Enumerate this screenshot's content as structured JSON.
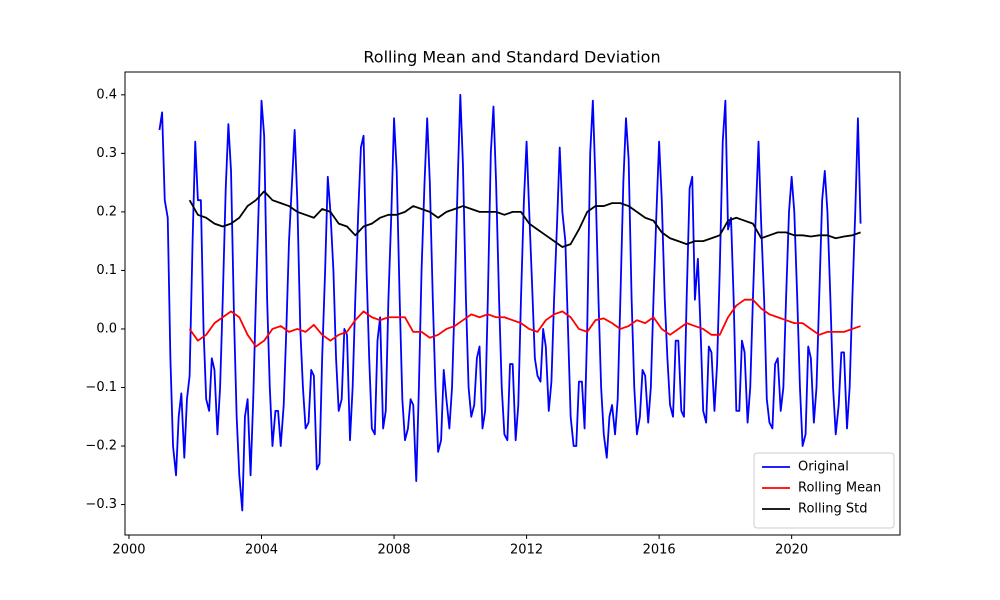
{
  "chart_data": {
    "type": "line",
    "title": "Rolling Mean and Standard Deviation",
    "xlim": [
      1999.88,
      2023.27
    ],
    "xticks": [
      2000,
      2004,
      2008,
      2012,
      2016,
      2020
    ],
    "ylim": [
      -0.352,
      0.439
    ],
    "yticks": [
      {
        "value": -0.3,
        "label": "−0.3"
      },
      {
        "value": -0.2,
        "label": "−0.2"
      },
      {
        "value": -0.1,
        "label": "−0.1"
      },
      {
        "value": 0.0,
        "label": "0.0"
      },
      0.1,
      0.2,
      0.3,
      0.4
    ],
    "grid": false,
    "legend": "lower right",
    "series": [
      {
        "name": "Original",
        "color": "#0000ff",
        "x": [
          2000.92,
          2001.0,
          2001.08,
          2001.17,
          2001.25,
          2001.33,
          2001.42,
          2001.5,
          2001.58,
          2001.67,
          2001.75,
          2001.83,
          2001.92,
          2002.0,
          2002.08,
          2002.17,
          2002.25,
          2002.33,
          2002.42,
          2002.5,
          2002.58,
          2002.67,
          2002.75,
          2002.83,
          2002.92,
          2003.0,
          2003.08,
          2003.17,
          2003.25,
          2003.33,
          2003.42,
          2003.5,
          2003.58,
          2003.67,
          2003.75,
          2003.83,
          2003.92,
          2004.0,
          2004.08,
          2004.17,
          2004.25,
          2004.33,
          2004.42,
          2004.5,
          2004.58,
          2004.67,
          2004.75,
          2004.83,
          2004.92,
          2005.0,
          2005.08,
          2005.17,
          2005.25,
          2005.33,
          2005.42,
          2005.5,
          2005.58,
          2005.67,
          2005.75,
          2005.83,
          2005.92,
          2006.0,
          2006.08,
          2006.17,
          2006.25,
          2006.33,
          2006.42,
          2006.5,
          2006.58,
          2006.67,
          2006.75,
          2006.83,
          2006.92,
          2007.0,
          2007.08,
          2007.17,
          2007.25,
          2007.33,
          2007.42,
          2007.5,
          2007.58,
          2007.67,
          2007.75,
          2007.83,
          2007.92,
          2008.0,
          2008.08,
          2008.17,
          2008.25,
          2008.33,
          2008.42,
          2008.5,
          2008.58,
          2008.67,
          2008.75,
          2008.83,
          2008.92,
          2009.0,
          2009.08,
          2009.17,
          2009.25,
          2009.33,
          2009.42,
          2009.5,
          2009.58,
          2009.67,
          2009.75,
          2009.83,
          2009.92,
          2010.0,
          2010.08,
          2010.17,
          2010.25,
          2010.33,
          2010.42,
          2010.5,
          2010.58,
          2010.67,
          2010.75,
          2010.83,
          2010.92,
          2011.0,
          2011.08,
          2011.17,
          2011.25,
          2011.33,
          2011.42,
          2011.5,
          2011.58,
          2011.67,
          2011.75,
          2011.83,
          2011.92,
          2012.0,
          2012.08,
          2012.17,
          2012.25,
          2012.33,
          2012.42,
          2012.5,
          2012.58,
          2012.67,
          2012.75,
          2012.83,
          2012.92,
          2013.0,
          2013.08,
          2013.17,
          2013.25,
          2013.33,
          2013.42,
          2013.5,
          2013.58,
          2013.67,
          2013.75,
          2013.83,
          2013.92,
          2014.0,
          2014.08,
          2014.17,
          2014.25,
          2014.33,
          2014.42,
          2014.5,
          2014.58,
          2014.67,
          2014.75,
          2014.83,
          2014.92,
          2015.0,
          2015.08,
          2015.17,
          2015.25,
          2015.33,
          2015.42,
          2015.5,
          2015.58,
          2015.67,
          2015.75,
          2015.83,
          2015.92,
          2016.0,
          2016.08,
          2016.17,
          2016.25,
          2016.33,
          2016.42,
          2016.5,
          2016.58,
          2016.67,
          2016.75,
          2016.83,
          2016.92,
          2017.0,
          2017.08,
          2017.17,
          2017.25,
          2017.33,
          2017.42,
          2017.5,
          2017.58,
          2017.67,
          2017.75,
          2017.83,
          2017.92,
          2018.0,
          2018.08,
          2018.17,
          2018.25,
          2018.33,
          2018.42,
          2018.5,
          2018.58,
          2018.67,
          2018.75,
          2018.83,
          2018.92,
          2019.0,
          2019.08,
          2019.17,
          2019.25,
          2019.33,
          2019.42,
          2019.5,
          2019.58,
          2019.67,
          2019.75,
          2019.83,
          2019.92,
          2020.0,
          2020.08,
          2020.17,
          2020.25,
          2020.33,
          2020.42,
          2020.5,
          2020.58,
          2020.67,
          2020.75,
          2020.83,
          2020.92,
          2021.0,
          2021.08,
          2021.17,
          2021.25,
          2021.33,
          2021.42,
          2021.5,
          2021.58,
          2021.67,
          2021.75,
          2021.83,
          2021.92,
          2022.0,
          2022.08
        ],
        "values": [
          0.34,
          0.37,
          0.22,
          0.19,
          -0.05,
          -0.2,
          -0.25,
          -0.15,
          -0.11,
          -0.22,
          -0.12,
          -0.08,
          0.15,
          0.32,
          0.22,
          0.22,
          0.0,
          -0.12,
          -0.14,
          -0.05,
          -0.07,
          -0.18,
          -0.1,
          0.05,
          0.24,
          0.35,
          0.27,
          0.02,
          -0.15,
          -0.25,
          -0.31,
          -0.15,
          -0.12,
          -0.25,
          -0.12,
          0.05,
          0.22,
          0.39,
          0.33,
          0.05,
          -0.1,
          -0.2,
          -0.14,
          -0.14,
          -0.2,
          -0.13,
          0.0,
          0.15,
          0.25,
          0.34,
          0.22,
          0.0,
          -0.1,
          -0.17,
          -0.16,
          -0.07,
          -0.08,
          -0.24,
          -0.23,
          -0.05,
          0.1,
          0.26,
          0.2,
          0.1,
          -0.05,
          -0.14,
          -0.12,
          0.0,
          -0.01,
          -0.19,
          -0.1,
          0.05,
          0.2,
          0.31,
          0.33,
          0.1,
          -0.05,
          -0.17,
          -0.18,
          -0.02,
          0.02,
          -0.17,
          -0.14,
          0.05,
          0.2,
          0.36,
          0.27,
          0.05,
          -0.12,
          -0.19,
          -0.17,
          -0.12,
          -0.13,
          -0.26,
          -0.1,
          0.1,
          0.25,
          0.36,
          0.25,
          0.05,
          -0.1,
          -0.21,
          -0.19,
          -0.07,
          -0.12,
          -0.17,
          -0.1,
          0.05,
          0.25,
          0.4,
          0.28,
          0.05,
          -0.1,
          -0.15,
          -0.13,
          -0.05,
          -0.03,
          -0.17,
          -0.14,
          0.05,
          0.3,
          0.38,
          0.25,
          0.05,
          -0.1,
          -0.18,
          -0.19,
          -0.06,
          -0.06,
          -0.19,
          -0.13,
          0.05,
          0.22,
          0.32,
          0.2,
          0.07,
          -0.05,
          -0.08,
          -0.09,
          0.0,
          -0.03,
          -0.14,
          -0.09,
          0.05,
          0.18,
          0.31,
          0.2,
          0.15,
          0.0,
          -0.15,
          -0.2,
          -0.2,
          -0.09,
          -0.09,
          -0.17,
          0.0,
          0.3,
          0.39,
          0.25,
          0.05,
          -0.1,
          -0.18,
          -0.22,
          -0.15,
          -0.13,
          -0.18,
          -0.12,
          0.05,
          0.25,
          0.36,
          0.29,
          0.05,
          -0.1,
          -0.18,
          -0.15,
          -0.07,
          -0.08,
          -0.16,
          -0.1,
          0.05,
          0.2,
          0.32,
          0.22,
          0.05,
          -0.05,
          -0.13,
          -0.15,
          -0.02,
          -0.02,
          -0.14,
          -0.15,
          0.05,
          0.24,
          0.26,
          0.05,
          0.12,
          0.0,
          -0.14,
          -0.16,
          -0.03,
          -0.04,
          -0.14,
          -0.06,
          0.1,
          0.32,
          0.39,
          0.17,
          0.19,
          0.05,
          -0.14,
          -0.14,
          -0.02,
          -0.04,
          -0.16,
          -0.1,
          0.05,
          0.2,
          0.32,
          0.18,
          0.05,
          -0.12,
          -0.16,
          -0.17,
          -0.06,
          -0.05,
          -0.14,
          -0.1,
          0.05,
          0.2,
          0.26,
          0.2,
          0.05,
          -0.1,
          -0.2,
          -0.18,
          -0.03,
          -0.05,
          -0.16,
          -0.1,
          0.05,
          0.22,
          0.27,
          0.2,
          0.05,
          -0.1,
          -0.18,
          -0.13,
          -0.04,
          -0.04,
          -0.17,
          -0.1,
          0.05,
          0.2,
          0.36,
          0.18
        ]
      },
      {
        "name": "Rolling Mean",
        "color": "#ff0000",
        "x": [
          2001.83,
          2002.08,
          2002.33,
          2002.58,
          2002.83,
          2003.08,
          2003.33,
          2003.58,
          2003.83,
          2004.08,
          2004.33,
          2004.58,
          2004.83,
          2005.08,
          2005.33,
          2005.58,
          2005.83,
          2006.08,
          2006.33,
          2006.58,
          2006.83,
          2007.08,
          2007.33,
          2007.58,
          2007.83,
          2008.08,
          2008.33,
          2008.58,
          2008.83,
          2009.08,
          2009.33,
          2009.58,
          2009.83,
          2010.08,
          2010.33,
          2010.58,
          2010.83,
          2011.08,
          2011.33,
          2011.58,
          2011.83,
          2012.08,
          2012.33,
          2012.58,
          2012.83,
          2013.08,
          2013.33,
          2013.58,
          2013.83,
          2014.08,
          2014.33,
          2014.58,
          2014.83,
          2015.08,
          2015.33,
          2015.58,
          2015.83,
          2016.08,
          2016.33,
          2016.58,
          2016.83,
          2017.08,
          2017.33,
          2017.58,
          2017.83,
          2018.08,
          2018.33,
          2018.58,
          2018.83,
          2019.08,
          2019.33,
          2019.58,
          2019.83,
          2020.08,
          2020.33,
          2020.58,
          2020.83,
          2021.08,
          2021.33,
          2021.58,
          2021.83,
          2022.08
        ],
        "values": [
          0.0,
          -0.02,
          -0.01,
          0.01,
          0.02,
          0.03,
          0.02,
          -0.01,
          -0.03,
          -0.02,
          0.0,
          0.005,
          -0.005,
          0.0,
          -0.005,
          0.007,
          -0.01,
          -0.02,
          -0.01,
          -0.005,
          0.015,
          0.03,
          0.02,
          0.015,
          0.02,
          0.02,
          0.02,
          -0.005,
          -0.005,
          -0.015,
          -0.01,
          0.0,
          0.005,
          0.015,
          0.025,
          0.02,
          0.025,
          0.02,
          0.02,
          0.015,
          0.01,
          0.0,
          -0.005,
          0.015,
          0.025,
          0.03,
          0.02,
          0.0,
          -0.005,
          0.015,
          0.018,
          0.01,
          0.0,
          0.005,
          0.015,
          0.01,
          0.02,
          0.0,
          -0.01,
          0.0,
          0.01,
          0.005,
          0.0,
          -0.01,
          -0.01,
          0.02,
          0.04,
          0.05,
          0.05,
          0.035,
          0.025,
          0.02,
          0.015,
          0.01,
          0.01,
          0.0,
          -0.01,
          -0.005,
          -0.005,
          -0.005,
          0.0,
          0.005
        ]
      },
      {
        "name": "Rolling Std",
        "color": "#000000",
        "x": [
          2001.83,
          2002.08,
          2002.33,
          2002.58,
          2002.83,
          2003.08,
          2003.33,
          2003.58,
          2003.83,
          2004.08,
          2004.33,
          2004.58,
          2004.83,
          2005.08,
          2005.33,
          2005.58,
          2005.83,
          2006.08,
          2006.33,
          2006.58,
          2006.83,
          2007.08,
          2007.33,
          2007.58,
          2007.83,
          2008.08,
          2008.33,
          2008.58,
          2008.83,
          2009.08,
          2009.33,
          2009.58,
          2009.83,
          2010.08,
          2010.33,
          2010.58,
          2010.83,
          2011.08,
          2011.33,
          2011.58,
          2011.83,
          2012.08,
          2012.33,
          2012.58,
          2012.83,
          2013.08,
          2013.33,
          2013.58,
          2013.83,
          2014.08,
          2014.33,
          2014.58,
          2014.83,
          2015.08,
          2015.33,
          2015.58,
          2015.83,
          2016.08,
          2016.33,
          2016.58,
          2016.83,
          2017.08,
          2017.33,
          2017.58,
          2017.83,
          2018.08,
          2018.33,
          2018.58,
          2018.83,
          2019.08,
          2019.33,
          2019.58,
          2019.83,
          2020.08,
          2020.33,
          2020.58,
          2020.83,
          2021.08,
          2021.33,
          2021.58,
          2021.83,
          2022.08
        ],
        "values": [
          0.22,
          0.195,
          0.19,
          0.18,
          0.175,
          0.18,
          0.19,
          0.21,
          0.22,
          0.235,
          0.22,
          0.215,
          0.21,
          0.2,
          0.195,
          0.19,
          0.205,
          0.2,
          0.18,
          0.175,
          0.16,
          0.175,
          0.18,
          0.19,
          0.195,
          0.195,
          0.2,
          0.21,
          0.205,
          0.2,
          0.19,
          0.2,
          0.205,
          0.21,
          0.205,
          0.2,
          0.2,
          0.2,
          0.195,
          0.2,
          0.2,
          0.18,
          0.17,
          0.16,
          0.15,
          0.14,
          0.145,
          0.17,
          0.2,
          0.21,
          0.21,
          0.215,
          0.215,
          0.21,
          0.2,
          0.19,
          0.185,
          0.165,
          0.155,
          0.15,
          0.145,
          0.15,
          0.15,
          0.155,
          0.16,
          0.185,
          0.19,
          0.185,
          0.18,
          0.155,
          0.16,
          0.165,
          0.165,
          0.16,
          0.16,
          0.158,
          0.16,
          0.16,
          0.155,
          0.158,
          0.16,
          0.165
        ]
      }
    ]
  }
}
